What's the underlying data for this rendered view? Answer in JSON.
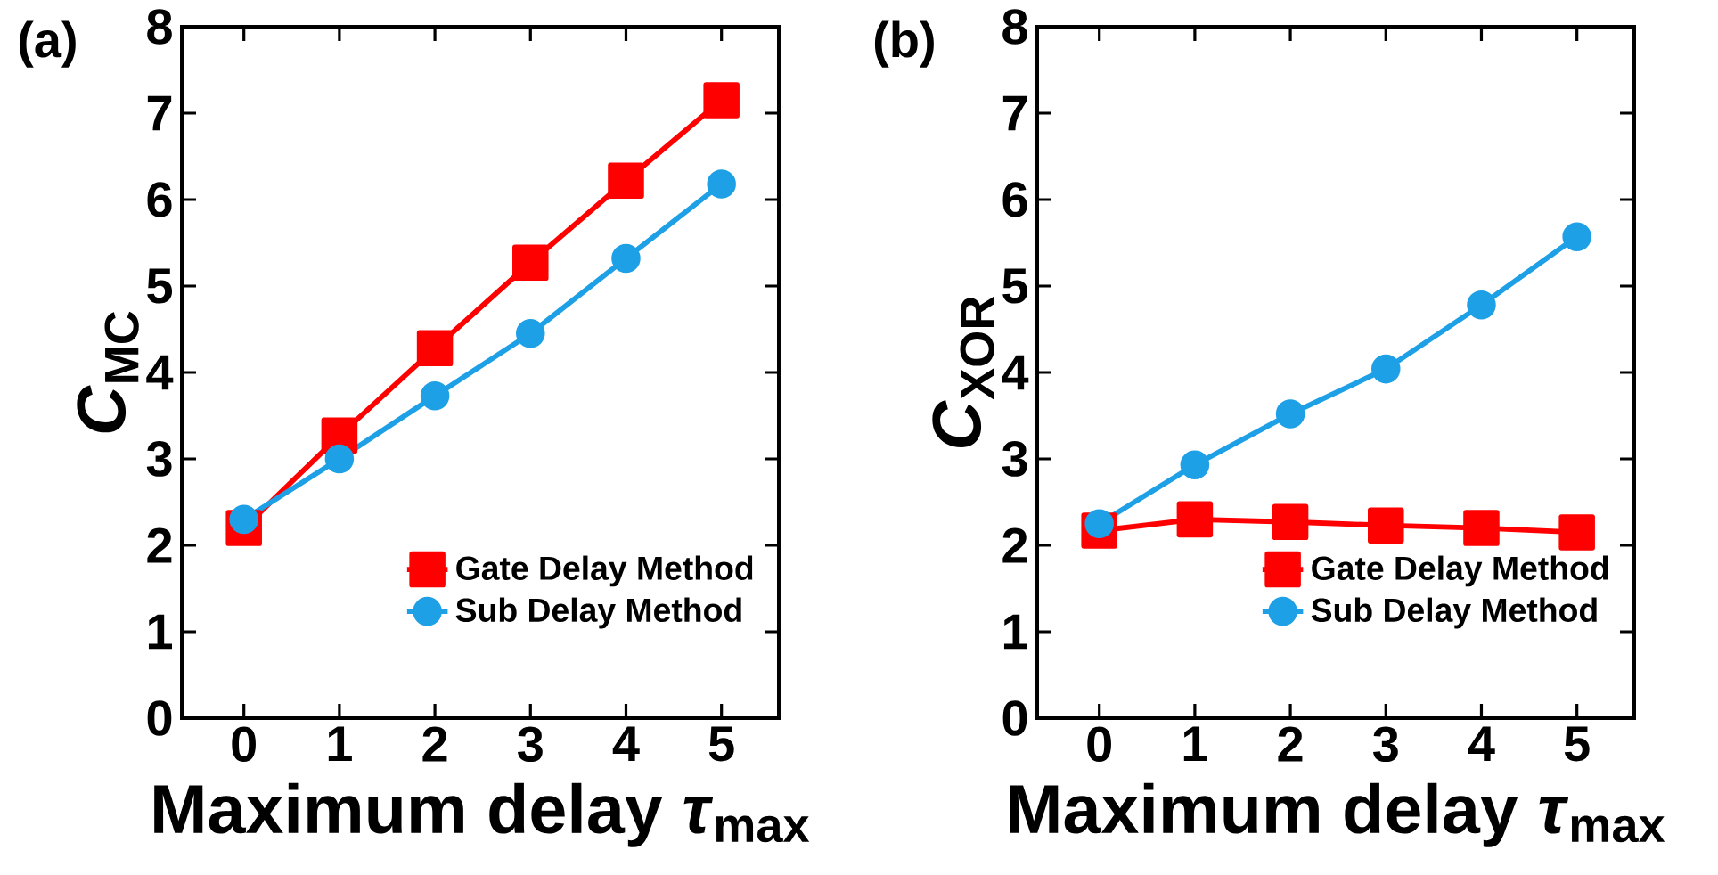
{
  "chart_data": [
    {
      "type": "line",
      "title": "(a)",
      "xlabel": "Maximum delay *τ*$_{max}$",
      "ylabel": "*C*$_{MC}$",
      "x": [
        0,
        1,
        2,
        3,
        4,
        5
      ],
      "xlim": [
        -0.65,
        5.6
      ],
      "ylim": [
        0,
        8
      ],
      "xticks": [
        0,
        1,
        2,
        3,
        4,
        5
      ],
      "yticks": [
        0,
        1,
        2,
        3,
        4,
        5,
        6,
        7,
        8
      ],
      "legend": "bottom right",
      "line_style": "solid",
      "series": [
        {
          "name": "Gate Delay Method",
          "color": "#ff0000",
          "marker": "square",
          "values": [
            2.2,
            3.27,
            4.28,
            5.27,
            6.22,
            7.15
          ]
        },
        {
          "name": "Sub Delay Method",
          "color": "#1ea0e6",
          "marker": "circle",
          "values": [
            2.3,
            3.0,
            3.73,
            4.45,
            5.32,
            6.18
          ]
        }
      ]
    },
    {
      "type": "line",
      "title": "(b)",
      "xlabel": "Maximum delay *τ*$_{max}$",
      "ylabel": "*C*$_{XOR}$",
      "x": [
        0,
        1,
        2,
        3,
        4,
        5
      ],
      "xlim": [
        -0.65,
        5.6
      ],
      "ylim": [
        0,
        8
      ],
      "xticks": [
        0,
        1,
        2,
        3,
        4,
        5
      ],
      "yticks": [
        0,
        1,
        2,
        3,
        4,
        5,
        6,
        7,
        8
      ],
      "legend": "bottom right",
      "line_style": "solid",
      "series": [
        {
          "name": "Gate Delay Method",
          "color": "#ff0000",
          "marker": "square",
          "values": [
            2.17,
            2.3,
            2.27,
            2.23,
            2.2,
            2.15
          ]
        },
        {
          "name": "Sub Delay Method",
          "color": "#1ea0e6",
          "marker": "circle",
          "values": [
            2.25,
            2.93,
            3.52,
            4.04,
            4.78,
            5.57
          ]
        }
      ]
    }
  ]
}
